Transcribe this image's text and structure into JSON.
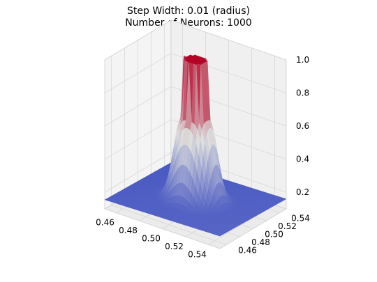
{
  "chart_data": {
    "type": "surface",
    "title_lines": [
      "Step Width: 0.01 (radius)",
      "Number of Neurons: 1000"
    ],
    "xlabel": "",
    "ylabel": "",
    "zlabel": "",
    "x_ticks": [
      "0.46",
      "0.48",
      "0.50",
      "0.52",
      "0.54"
    ],
    "y_ticks": [
      "0.46",
      "0.48",
      "0.50",
      "0.52",
      "0.54"
    ],
    "z_ticks": [
      "0.2",
      "0.4",
      "0.6",
      "0.8",
      "1.0"
    ],
    "xlim": [
      0.45,
      0.55
    ],
    "ylim": [
      0.45,
      0.55
    ],
    "zlim": [
      0.1,
      1.0
    ],
    "grid": true,
    "colormap": "coolwarm",
    "colormap_low": "#3b4cc0",
    "colormap_mid": "#dddddd",
    "colormap_high": "#b40426",
    "surface": {
      "center": [
        0.5,
        0.5
      ],
      "step_radius": 0.01,
      "peak_value": 1.0,
      "floor_value": 0.1,
      "grid_points": 41
    }
  }
}
